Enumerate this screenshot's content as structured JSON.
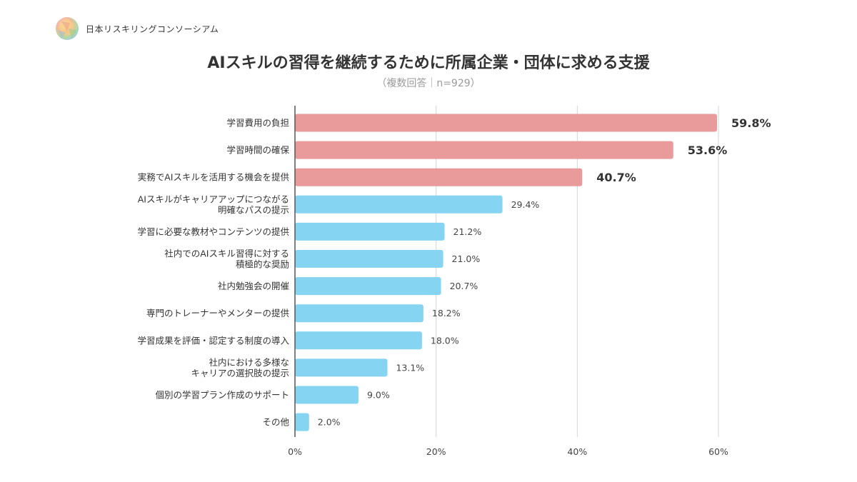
{
  "brand": {
    "name": "日本リスキリングコンソーシアム"
  },
  "chart_data": {
    "type": "bar",
    "orientation": "horizontal",
    "title": "AIスキルの習得を継続するために所属企業・団体に求める支援",
    "subtitle": "（複数回答｜n=929）",
    "categories": [
      [
        "学習費用の負担"
      ],
      [
        "学習時間の確保"
      ],
      [
        "実務でAIスキルを活用する機会を提供"
      ],
      [
        "AIスキルがキャリアアップにつながる",
        "明確なパスの提示"
      ],
      [
        "学習に必要な教材やコンテンツの提供"
      ],
      [
        "社内でのAIスキル習得に対する",
        "積極的な奨励"
      ],
      [
        "社内勉強会の開催"
      ],
      [
        "専門のトレーナーやメンターの提供"
      ],
      [
        "学習成果を評価・認定する制度の導入"
      ],
      [
        "社内における多様な",
        "キャリアの選択肢の提示"
      ],
      [
        "個別の学習プラン作成のサポート"
      ],
      [
        "その他"
      ]
    ],
    "values": [
      59.8,
      53.6,
      40.7,
      29.4,
      21.2,
      21.0,
      20.7,
      18.2,
      18.0,
      13.1,
      9.0,
      2.0
    ],
    "value_labels": [
      "59.8%",
      "53.6%",
      "40.7%",
      "29.4%",
      "21.2%",
      "21.0%",
      "20.7%",
      "18.2%",
      "18.0%",
      "13.1%",
      "9.0%",
      "2.0%"
    ],
    "highlight_top": 3,
    "colors": {
      "highlight": "#e89b9a",
      "normal": "#84d4f2",
      "grid": "#d4d4d4",
      "axis": "#555555"
    },
    "xlim": [
      0,
      60
    ],
    "xticks": [
      0,
      20,
      40,
      60
    ],
    "xtick_labels": [
      "0%",
      "20%",
      "40%",
      "60%"
    ],
    "grid": true
  }
}
